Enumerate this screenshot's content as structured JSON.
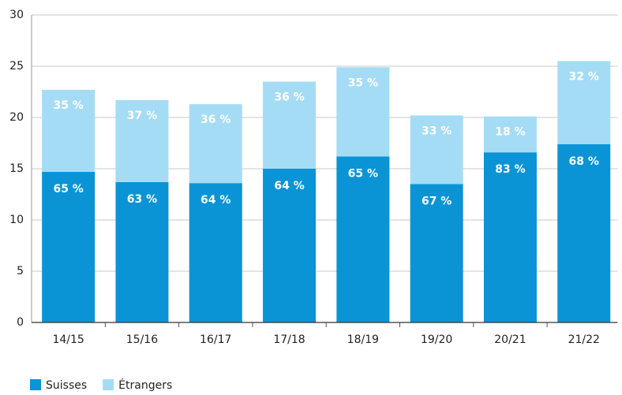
{
  "chart_data": {
    "type": "stacked_bar",
    "categories": [
      "14/15",
      "15/16",
      "16/17",
      "17/18",
      "18/19",
      "19/20",
      "20/21",
      "21/22"
    ],
    "series": [
      {
        "name": "Suisses",
        "color": "#0a94d6",
        "values": [
          14.7,
          13.7,
          13.6,
          15.0,
          16.2,
          13.5,
          16.6,
          17.4
        ],
        "share_labels": [
          "65 %",
          "63 %",
          "64 %",
          "64 %",
          "65 %",
          "67 %",
          "83 %",
          "68 %"
        ]
      },
      {
        "name": "Étrangers",
        "color": "#a5dcf5",
        "values": [
          8.0,
          8.0,
          7.7,
          8.5,
          8.7,
          6.7,
          3.5,
          8.1
        ],
        "share_labels": [
          "35 %",
          "37 %",
          "36 %",
          "36 %",
          "35 %",
          "33 %",
          "18 %",
          "32 %"
        ]
      }
    ],
    "ylim": [
      0,
      30
    ],
    "yticks": [
      0,
      5,
      10,
      15,
      20,
      25,
      30
    ],
    "grid": true,
    "legend": "bottom-left"
  }
}
